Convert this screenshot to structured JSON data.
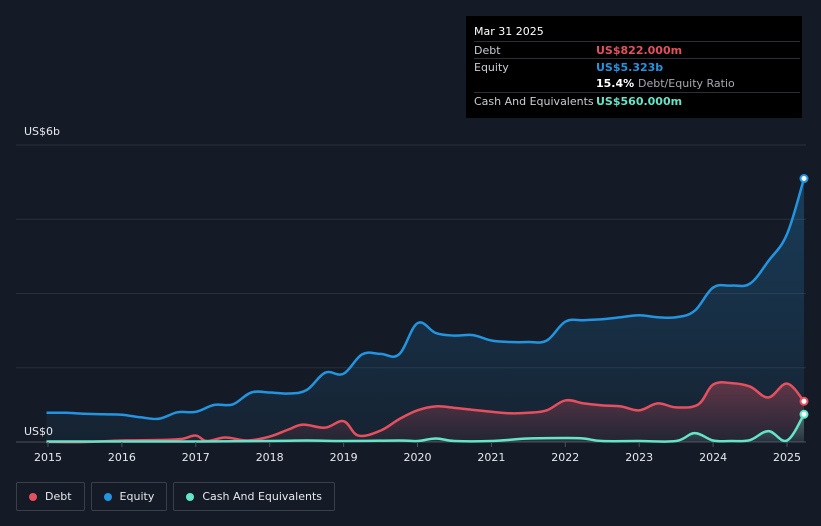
{
  "chart_data": {
    "type": "area",
    "ylim": [
      0,
      6000
    ],
    "y_unit": "millions USD",
    "y_top_label": "US$6b",
    "y_bottom_label": "US$0",
    "x_ticks": [
      "2015",
      "2016",
      "2017",
      "2018",
      "2019",
      "2020",
      "2021",
      "2022",
      "2023",
      "2024",
      "2025"
    ],
    "grid": true,
    "legend_position": "bottom-left",
    "series": [
      {
        "name": "Debt",
        "color": "#e4505f",
        "points": [
          [
            2014.98,
            0
          ],
          [
            2015.5,
            0
          ],
          [
            2016.0,
            30
          ],
          [
            2016.5,
            40
          ],
          [
            2016.8,
            60
          ],
          [
            2017.0,
            130
          ],
          [
            2017.15,
            20
          ],
          [
            2017.4,
            90
          ],
          [
            2017.7,
            30
          ],
          [
            2018.0,
            110
          ],
          [
            2018.25,
            250
          ],
          [
            2018.45,
            350
          ],
          [
            2018.75,
            290
          ],
          [
            2019.0,
            420
          ],
          [
            2019.2,
            130
          ],
          [
            2019.5,
            230
          ],
          [
            2019.75,
            460
          ],
          [
            2020.0,
            640
          ],
          [
            2020.25,
            720
          ],
          [
            2020.5,
            690
          ],
          [
            2020.75,
            650
          ],
          [
            2021.0,
            610
          ],
          [
            2021.25,
            580
          ],
          [
            2021.5,
            590
          ],
          [
            2021.75,
            640
          ],
          [
            2022.0,
            840
          ],
          [
            2022.25,
            780
          ],
          [
            2022.5,
            740
          ],
          [
            2022.75,
            720
          ],
          [
            2023.0,
            640
          ],
          [
            2023.25,
            780
          ],
          [
            2023.5,
            700
          ],
          [
            2023.8,
            760
          ],
          [
            2024.0,
            1160
          ],
          [
            2024.25,
            1190
          ],
          [
            2024.5,
            1120
          ],
          [
            2024.75,
            900
          ],
          [
            2025.0,
            1180
          ],
          [
            2025.23,
            822
          ]
        ]
      },
      {
        "name": "Equity",
        "color": "#2394df",
        "points": [
          [
            2014.98,
            590
          ],
          [
            2015.25,
            590
          ],
          [
            2015.5,
            570
          ],
          [
            2015.75,
            560
          ],
          [
            2016.0,
            550
          ],
          [
            2016.25,
            500
          ],
          [
            2016.5,
            470
          ],
          [
            2016.75,
            600
          ],
          [
            2017.0,
            610
          ],
          [
            2017.25,
            750
          ],
          [
            2017.5,
            760
          ],
          [
            2017.75,
            1000
          ],
          [
            2018.0,
            1000
          ],
          [
            2018.25,
            980
          ],
          [
            2018.5,
            1050
          ],
          [
            2018.75,
            1400
          ],
          [
            2019.0,
            1380
          ],
          [
            2019.25,
            1770
          ],
          [
            2019.5,
            1780
          ],
          [
            2019.75,
            1770
          ],
          [
            2020.0,
            2400
          ],
          [
            2020.25,
            2200
          ],
          [
            2020.5,
            2150
          ],
          [
            2020.75,
            2160
          ],
          [
            2021.0,
            2050
          ],
          [
            2021.25,
            2020
          ],
          [
            2021.5,
            2020
          ],
          [
            2021.75,
            2050
          ],
          [
            2022.0,
            2430
          ],
          [
            2022.25,
            2460
          ],
          [
            2022.5,
            2480
          ],
          [
            2022.75,
            2520
          ],
          [
            2023.0,
            2560
          ],
          [
            2023.25,
            2520
          ],
          [
            2023.5,
            2520
          ],
          [
            2023.75,
            2650
          ],
          [
            2024.0,
            3120
          ],
          [
            2024.25,
            3160
          ],
          [
            2024.5,
            3200
          ],
          [
            2024.75,
            3660
          ],
          [
            2025.0,
            4200
          ],
          [
            2025.23,
            5323
          ]
        ]
      },
      {
        "name": "Cash And Equivalents",
        "color": "#65e5c8",
        "points": [
          [
            2014.98,
            10
          ],
          [
            2016.0,
            10
          ],
          [
            2017.0,
            10
          ],
          [
            2018.0,
            20
          ],
          [
            2018.5,
            30
          ],
          [
            2019.0,
            20
          ],
          [
            2019.75,
            30
          ],
          [
            2020.0,
            20
          ],
          [
            2020.25,
            70
          ],
          [
            2020.5,
            20
          ],
          [
            2021.0,
            20
          ],
          [
            2021.5,
            70
          ],
          [
            2022.0,
            80
          ],
          [
            2022.25,
            70
          ],
          [
            2022.5,
            20
          ],
          [
            2023.0,
            20
          ],
          [
            2023.5,
            20
          ],
          [
            2023.75,
            180
          ],
          [
            2024.0,
            30
          ],
          [
            2024.25,
            20
          ],
          [
            2024.5,
            40
          ],
          [
            2024.75,
            220
          ],
          [
            2025.0,
            30
          ],
          [
            2025.23,
            560
          ]
        ]
      }
    ]
  },
  "tooltip": {
    "date": "Mar 31 2025",
    "debt_label": "Debt",
    "debt_value": "US$822.000m",
    "equity_label": "Equity",
    "equity_value": "US$5.323b",
    "ratio_value": "15.4%",
    "ratio_label": "Debt/Equity Ratio",
    "cash_label": "Cash And Equivalents",
    "cash_value": "US$560.000m"
  },
  "legend": {
    "debt": "Debt",
    "equity": "Equity",
    "cash": "Cash And Equivalents"
  },
  "colors": {
    "debt": "#e4505f",
    "equity": "#2394df",
    "cash": "#65e5c8",
    "background": "#151b26"
  }
}
